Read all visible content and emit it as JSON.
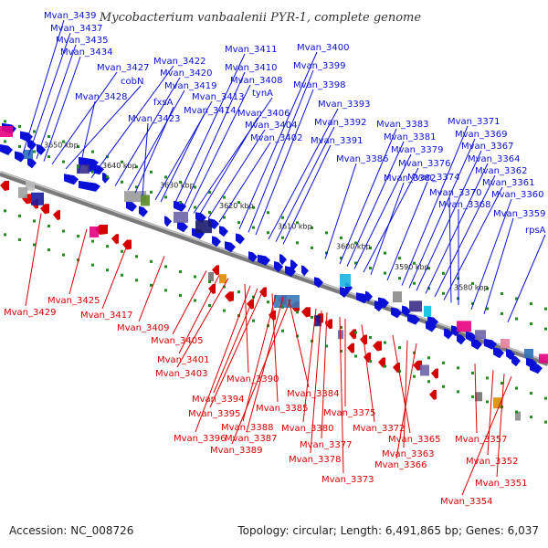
{
  "title": "Mycobacterium vanbaalenii PYR-1, complete genome",
  "footer": {
    "accession": "Accession: NC_008726",
    "summary": "Topology: circular; Length: 6,491,865 bp; Genes: 6,037"
  },
  "colors": {
    "forward": "#0a10d6",
    "reverse": "#d60000",
    "backbone": "#7a7a7a",
    "ticks": "#1f8a1f"
  },
  "kbp_markers": [
    "3650 kbp",
    "3640 kbp",
    "3630 kbp",
    "3620 kbp",
    "3610 kbp",
    "3600 kbp",
    "3590 kbp",
    "3580 kbp"
  ],
  "top_labels": [
    "Mvan_3439",
    "Mvan_3437",
    "Mvan_3435",
    "Mvan_3434",
    "Mvan_3427",
    "cobN",
    "Mvan_3428",
    "Mvan_3422",
    "Mvan_3420",
    "Mvan_3419",
    "fxsA",
    "Mvan_3423",
    "Mvan_3413",
    "Mvan_3414",
    "Mvan_3411",
    "Mvan_3410",
    "Mvan_3408",
    "tynA",
    "Mvan_3406",
    "Mvan_3404",
    "Mvan_3402",
    "Mvan_3400",
    "Mvan_3399",
    "Mvan_3398",
    "Mvan_3393",
    "Mvan_3392",
    "Mvan_3391",
    "Mvan_3386",
    "Mvan_3383",
    "Mvan_3381",
    "Mvan_3379",
    "Mvan_3376",
    "Mvan_3382",
    "Mvan_3374",
    "Mvan_3371",
    "Mvan_3369",
    "Mvan_3367",
    "Mvan_3364",
    "Mvan_3362",
    "Mvan_3361",
    "Mvan_3370",
    "Mvan_3368",
    "Mvan_3360",
    "Mvan_3359",
    "rpsA"
  ],
  "bottom_labels": [
    "Mvan_3429",
    "Mvan_3425",
    "Mvan_3417",
    "Mvan_3409",
    "Mvan_3405",
    "Mvan_3401",
    "Mvan_3403",
    "Mvan_3390",
    "Mvan_3394",
    "Mvan_3385",
    "Mvan_3384",
    "Mvan_3395",
    "Mvan_3388",
    "Mvan_3396",
    "Mvan_3387",
    "Mvan_3389",
    "Mvan_3380",
    "Mvan_3375",
    "Mvan_3377",
    "Mvan_3372",
    "Mvan_3378",
    "Mvan_3373",
    "Mvan_3365",
    "Mvan_3363",
    "Mvan_3366",
    "Mvan_3357",
    "Mvan_3352",
    "Mvan_3351",
    "Mvan_3354"
  ]
}
